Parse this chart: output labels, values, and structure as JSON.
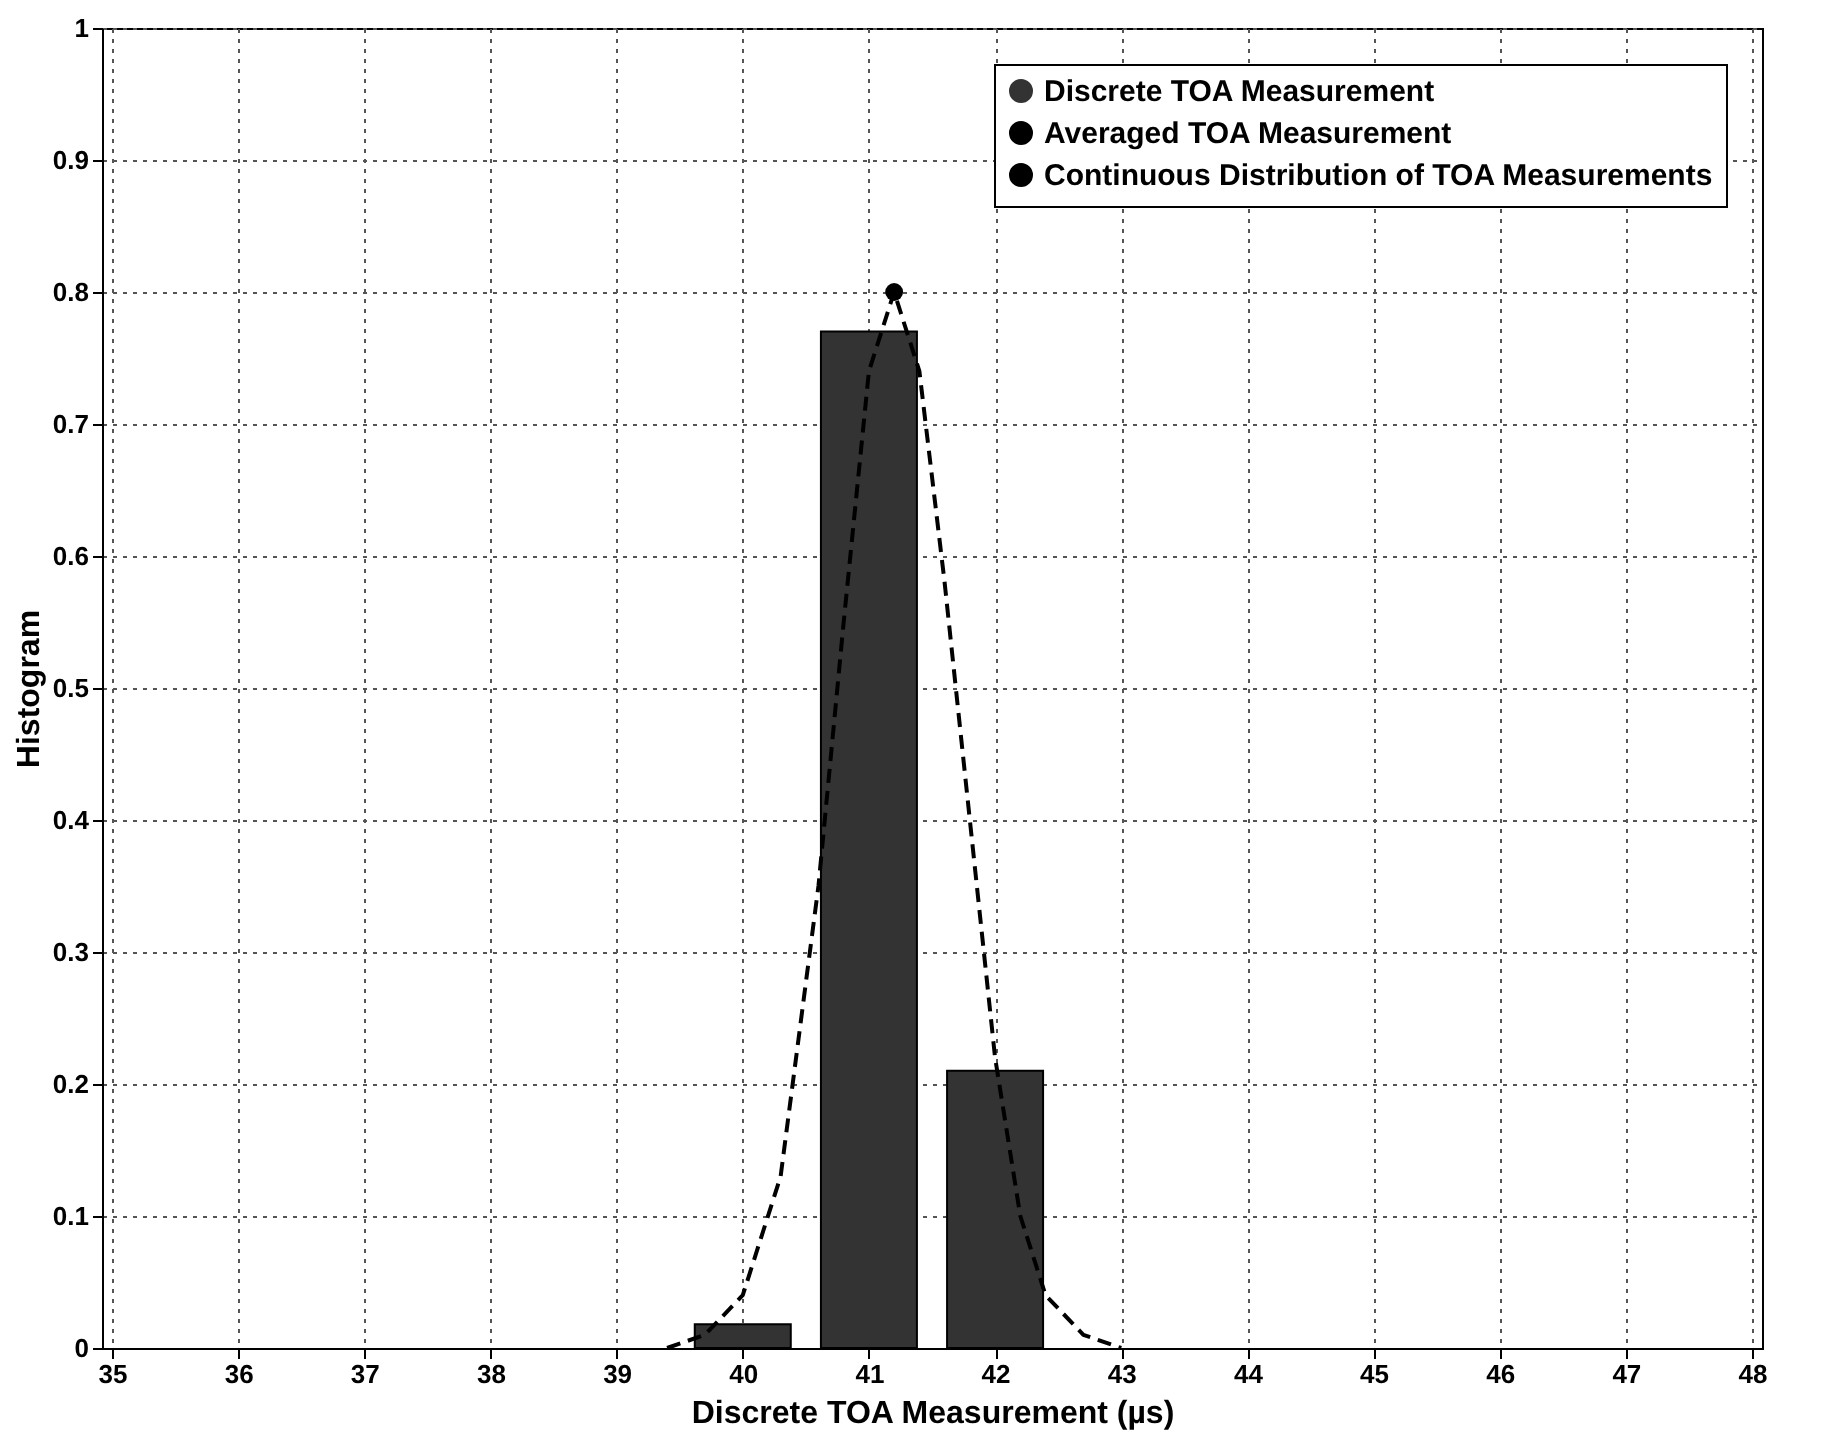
{
  "chart_data": {
    "type": "bar",
    "xlabel": "Discrete TOA Measurement (µs)",
    "ylabel": "Histogram",
    "series": [
      {
        "name": "Discrete TOA Measurement",
        "color": "#333333",
        "x": [
          40,
          41,
          42
        ],
        "values": [
          0.018,
          0.77,
          0.21
        ]
      },
      {
        "name": "Averaged TOA Measurement",
        "type": "line",
        "color": "#000000",
        "marker": "circle",
        "line_style": "solid",
        "x": [
          41.2
        ],
        "values": [
          0.8
        ]
      },
      {
        "name": "Continuous Distribution of TOA Measurements",
        "type": "line",
        "color": "#000000",
        "marker": "none",
        "line_style": "dashed",
        "x": [
          39.4,
          39.7,
          40.0,
          40.3,
          40.6,
          40.8,
          41.0,
          41.2,
          41.4,
          41.6,
          41.8,
          42.0,
          42.2,
          42.4,
          42.7,
          43.0
        ],
        "values": [
          0,
          0.01,
          0.04,
          0.13,
          0.35,
          0.55,
          0.74,
          0.8,
          0.74,
          0.58,
          0.4,
          0.22,
          0.1,
          0.04,
          0.01,
          0
        ]
      }
    ],
    "xlim": [
      35,
      48
    ],
    "xticks": [
      35,
      36,
      37,
      38,
      39,
      40,
      41,
      42,
      43,
      44,
      45,
      46,
      47,
      48
    ],
    "ylim": [
      0,
      1
    ],
    "yticks": [
      0,
      0.1,
      0.2,
      0.3,
      0.4,
      0.5,
      0.6,
      0.7,
      0.8,
      0.9,
      1
    ],
    "grid": true,
    "legend": "top right"
  }
}
